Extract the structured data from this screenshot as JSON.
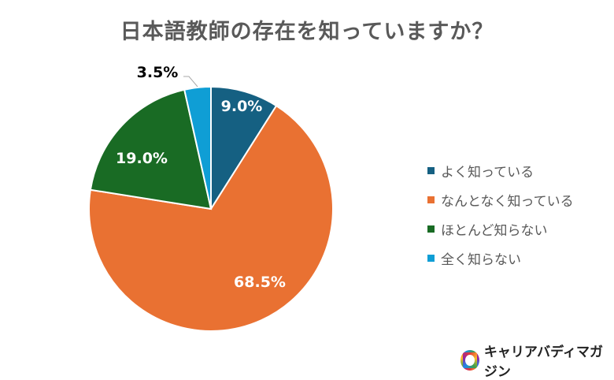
{
  "chart_data": {
    "type": "pie",
    "title": "日本語教師の存在を知っていますか？",
    "start": "top",
    "direction": "clockwise",
    "legend_position": "right",
    "slices": [
      {
        "label": "よく知っている",
        "value": 9.0,
        "display": "9.0%",
        "color": "#156082"
      },
      {
        "label": "なんとなく知っている",
        "value": 68.5,
        "display": "68.5%",
        "color": "#E97132"
      },
      {
        "label": "ほとんど知らない",
        "value": 19.0,
        "display": "19.0%",
        "color": "#196B24"
      },
      {
        "label": "全く知らない",
        "value": 3.5,
        "display": "3.5%",
        "color": "#0F9ED5"
      }
    ]
  },
  "branding": {
    "logo_text": "キャリアバディマガジン"
  }
}
